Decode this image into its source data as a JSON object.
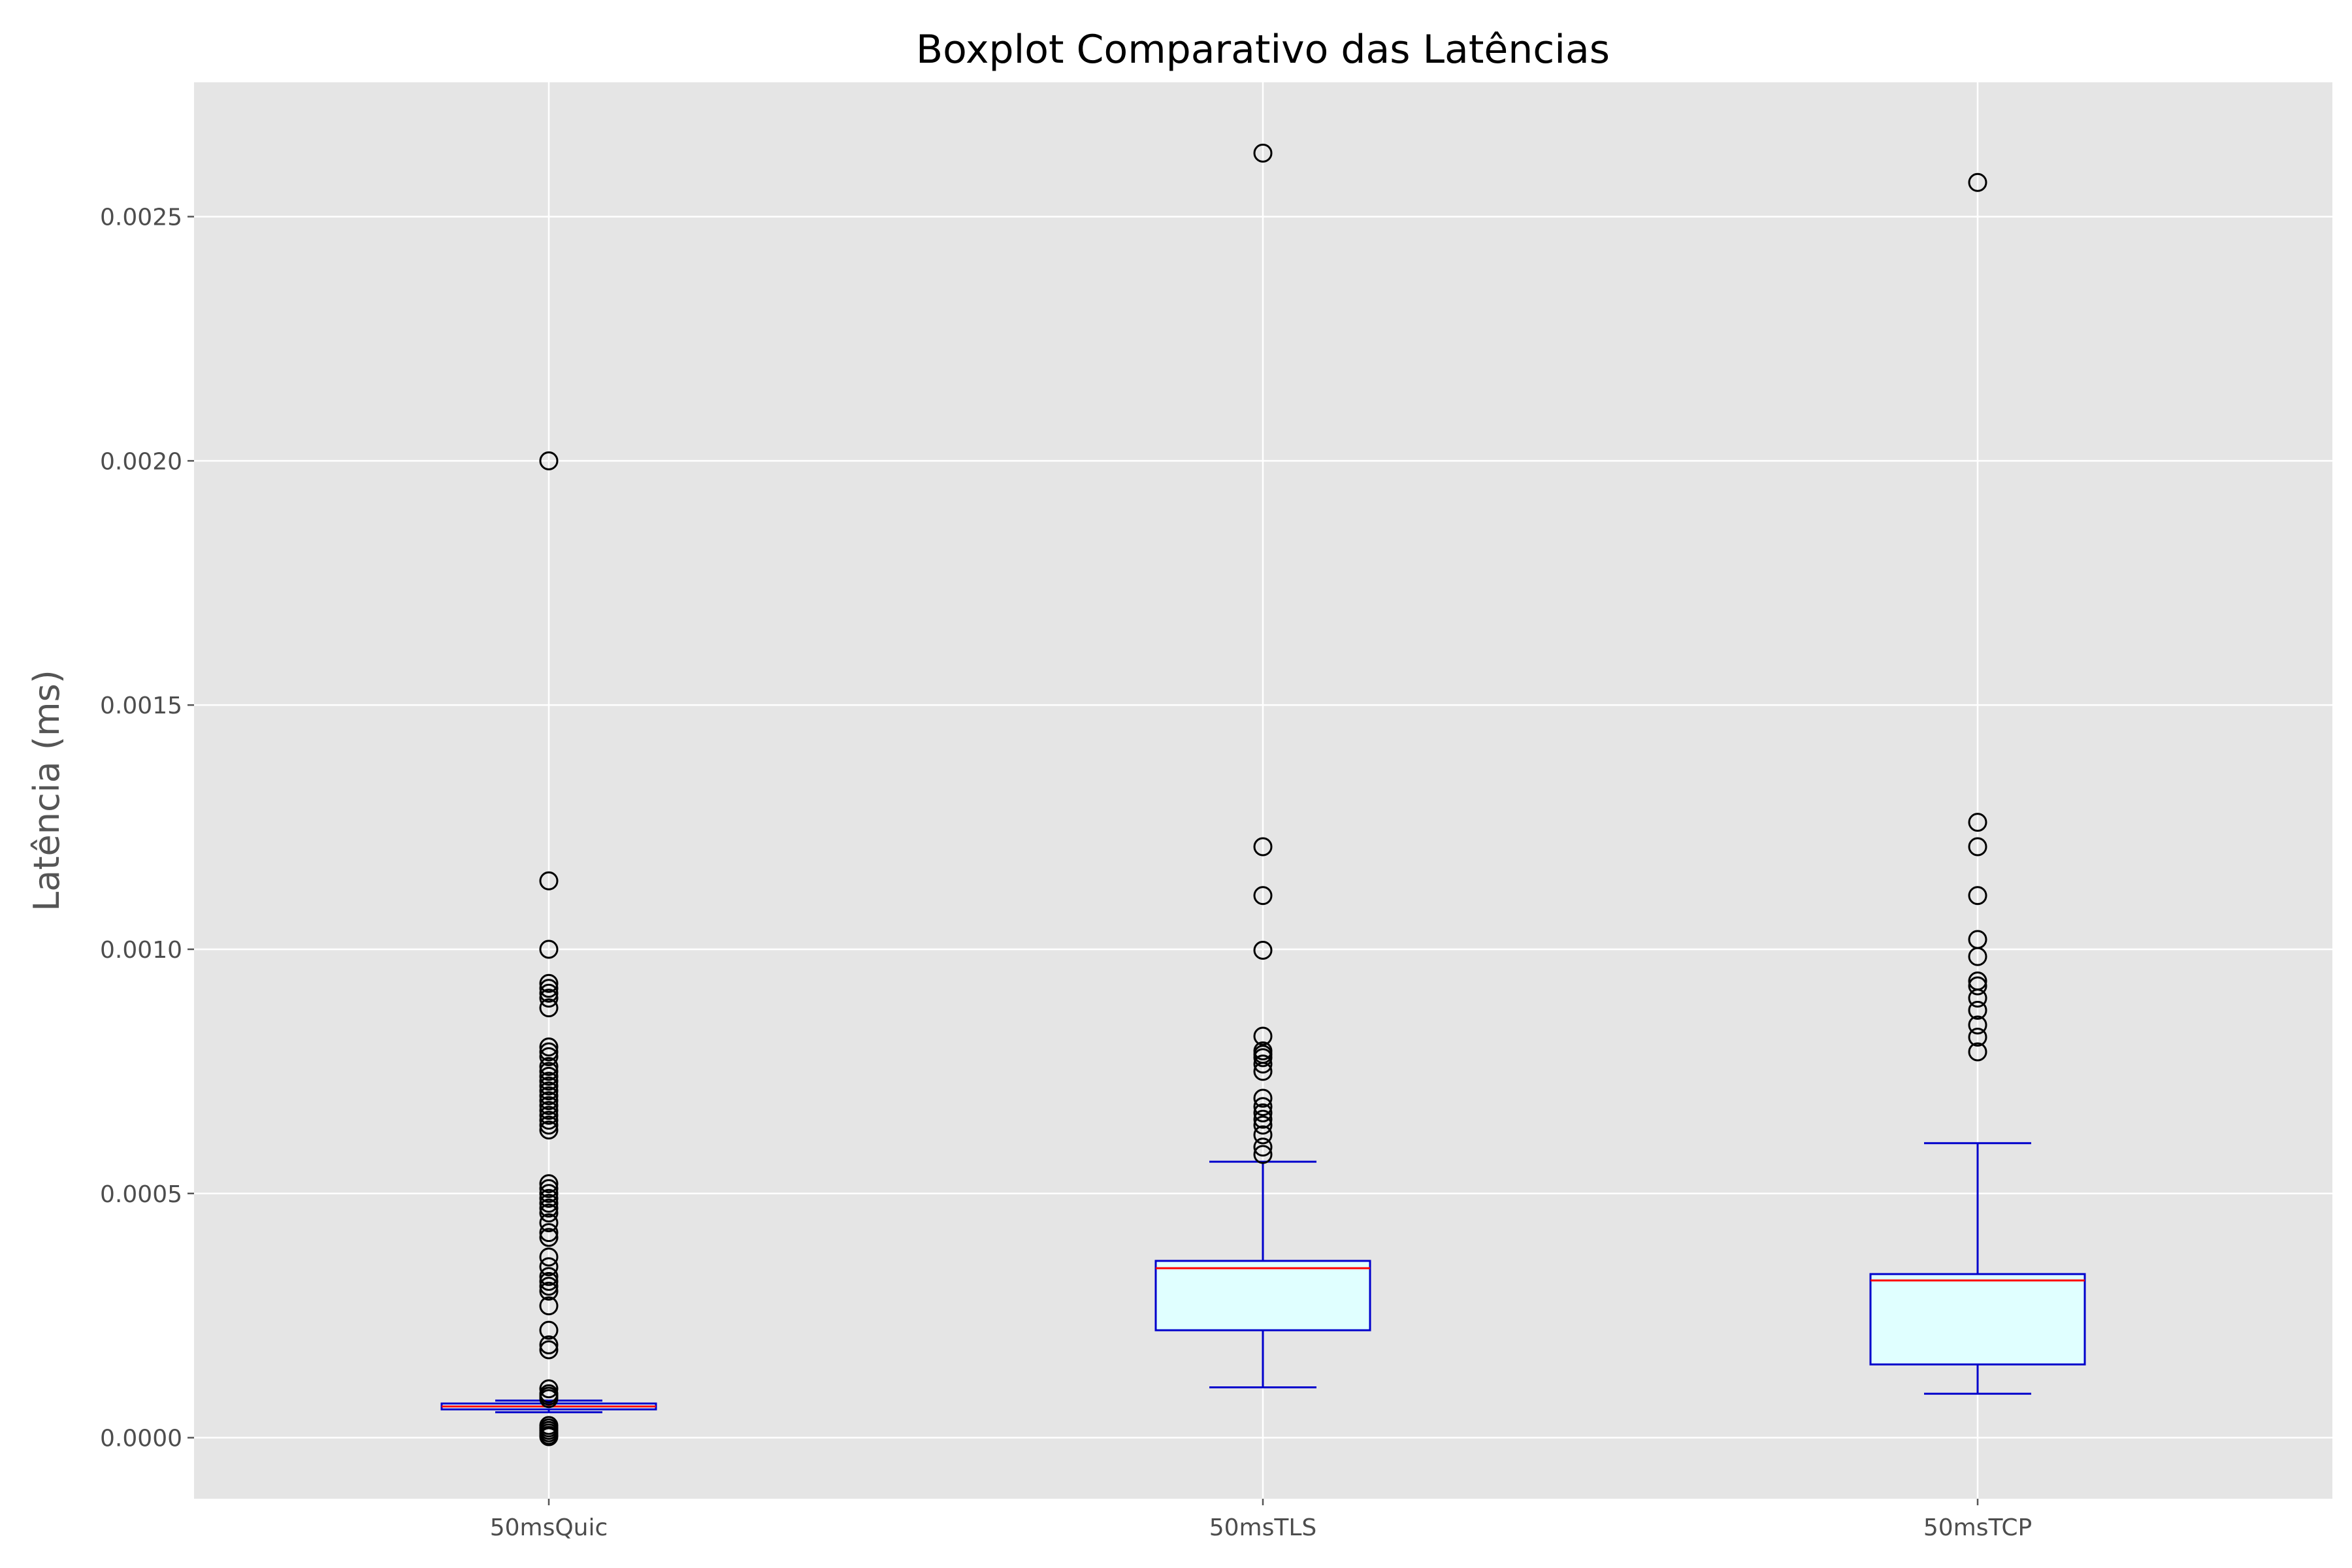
{
  "chart_data": {
    "type": "boxplot",
    "title": "Boxplot Comparativo das Latências",
    "xlabel": "",
    "ylabel": "Latência (ms)",
    "ylim": [
      -0.000125,
      0.002775
    ],
    "yticks": [
      {
        "value": 0.0,
        "label": "0.0000"
      },
      {
        "value": 0.0005,
        "label": "0.0005"
      },
      {
        "value": 0.001,
        "label": "0.0010"
      },
      {
        "value": 0.0015,
        "label": "0.0015"
      },
      {
        "value": 0.002,
        "label": "0.0020"
      },
      {
        "value": 0.0025,
        "label": "0.0025"
      }
    ],
    "grid": true,
    "colors": {
      "plot_background": "#e5e5e5",
      "grid": "#ffffff",
      "box_edge": "#0000cc",
      "box_fill": "#e0ffff",
      "median": "#ff0000",
      "outlier_edge": "#000000"
    },
    "categories": [
      "50msQuic",
      "50msTLS",
      "50msTCP"
    ],
    "boxes": [
      {
        "category": "50msQuic",
        "whisker_low": 5.2e-05,
        "q1": 5.8e-05,
        "median": 6.4e-05,
        "q3": 7e-05,
        "whisker_high": 7.6e-05,
        "outliers": [
          0.002,
          0.00114,
          0.001,
          0.00093,
          0.00092,
          0.00091,
          0.0009,
          0.00088,
          0.0008,
          0.00079,
          0.00078,
          0.00076,
          0.00075,
          0.00074,
          0.00073,
          0.00072,
          0.00071,
          0.0007,
          0.00069,
          0.00068,
          0.00067,
          0.00066,
          0.00065,
          0.00064,
          0.00063,
          0.00052,
          0.00051,
          0.0005,
          0.00049,
          0.00048,
          0.00047,
          0.00046,
          0.00044,
          0.00042,
          0.00041,
          0.00037,
          0.00035,
          0.00033,
          0.00032,
          0.00031,
          0.0003,
          0.00027,
          0.00022,
          0.00019,
          0.00018,
          0.0001,
          9e-05,
          8e-05,
          8.5e-05,
          2.5e-05,
          2e-05,
          1.5e-05,
          1e-05,
          5e-06,
          2e-06
        ]
      },
      {
        "category": "50msTLS",
        "whisker_low": 0.000103,
        "q1": 0.00022,
        "median": 0.000347,
        "q3": 0.000362,
        "whisker_high": 0.000565,
        "outliers": [
          0.00263,
          0.00121,
          0.00111,
          0.000998,
          0.000822,
          0.000792,
          0.000785,
          0.000778,
          0.000765,
          0.00075,
          0.000695,
          0.000678,
          0.000665,
          0.000652,
          0.00064,
          0.00062,
          0.000595,
          0.00058
        ]
      },
      {
        "category": "50msTCP",
        "whisker_low": 9e-05,
        "q1": 0.00015,
        "median": 0.000322,
        "q3": 0.000335,
        "whisker_high": 0.000603,
        "outliers": [
          0.00257,
          0.00126,
          0.00121,
          0.00111,
          0.00102,
          0.000985,
          0.000935,
          0.000925,
          0.0009,
          0.000875,
          0.000845,
          0.00082,
          0.00079
        ]
      }
    ]
  }
}
